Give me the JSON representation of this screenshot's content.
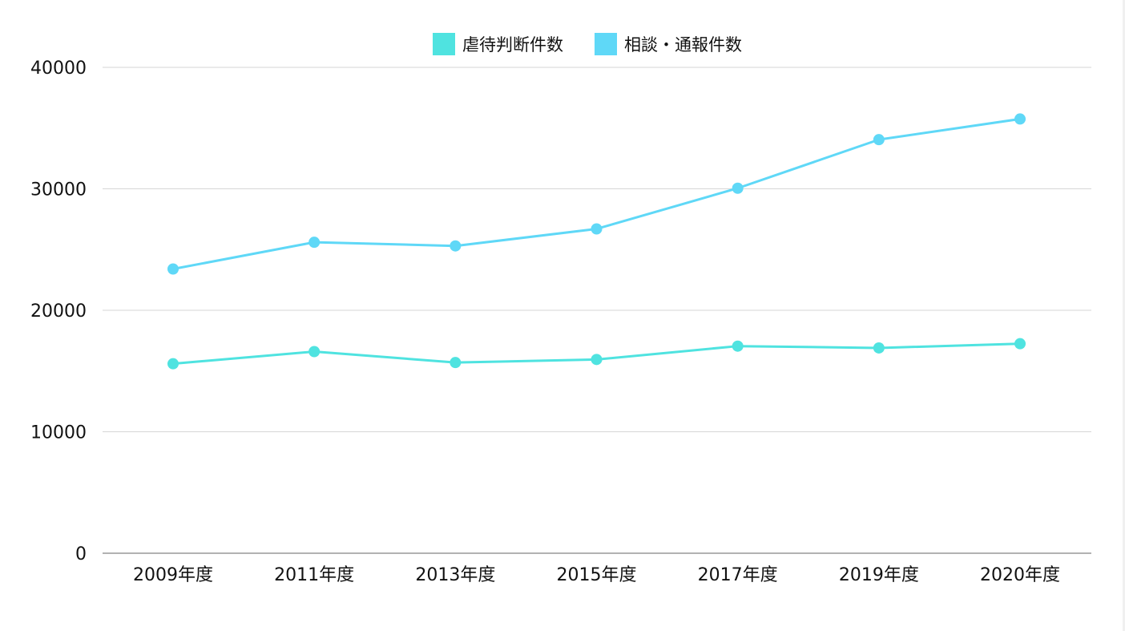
{
  "chart_data": {
    "type": "line",
    "title": "",
    "xlabel": "",
    "ylabel": "",
    "categories": [
      "2009年度",
      "2011年度",
      "2013年度",
      "2015年度",
      "2017年度",
      "2019年度",
      "2020年度"
    ],
    "series": [
      {
        "name": "虐待判断件数",
        "color": "#4fe3e0",
        "values": [
          15600,
          16600,
          15700,
          15950,
          17050,
          16900,
          17250
        ]
      },
      {
        "name": "相談・通報件数",
        "color": "#5fd8f7",
        "values": [
          23400,
          25600,
          25300,
          26700,
          30050,
          34050,
          35750
        ]
      }
    ],
    "y_ticks": [
      "40000",
      "30000",
      "20000",
      "10000",
      "0"
    ],
    "ylim": [
      0,
      40000
    ],
    "grid": true,
    "legend_position": "top-center"
  }
}
